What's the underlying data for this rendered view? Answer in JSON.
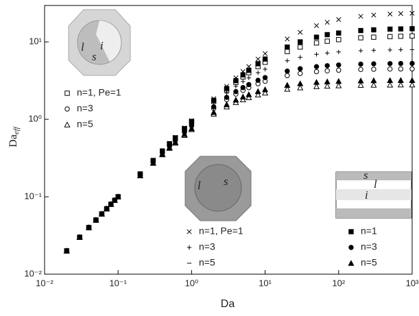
{
  "chart_data": {
    "type": "scatter",
    "x_label": "Da",
    "y_label": "Da",
    "y_label_sub": "eff",
    "log_x": true,
    "log_y": true,
    "xlim": [
      0.01,
      1000
    ],
    "ylim": [
      0.01,
      29.5
    ],
    "xticks": [
      {
        "value": 0.01,
        "label": "10⁻²"
      },
      {
        "value": 0.1,
        "label": "10⁻¹"
      },
      {
        "value": 1,
        "label": "10⁰"
      },
      {
        "value": 10,
        "label": "10¹"
      },
      {
        "value": 100,
        "label": "10²"
      },
      {
        "value": 1000,
        "label": "10³"
      }
    ],
    "yticks": [
      {
        "value": 0.01,
        "label": "10⁻²"
      },
      {
        "value": 0.1,
        "label": "10⁻¹"
      },
      {
        "value": 1,
        "label": "10⁰"
      },
      {
        "value": 10,
        "label": "10¹"
      }
    ],
    "x": [
      0.02,
      0.03,
      0.04,
      0.05,
      0.06,
      0.07,
      0.08,
      0.09,
      0.1,
      0.2,
      0.3,
      0.4,
      0.5,
      0.6,
      0.8,
      1,
      2,
      3,
      4,
      5,
      6,
      8,
      10,
      20,
      30,
      50,
      70,
      100,
      200,
      300,
      500,
      700,
      1000
    ],
    "series": [
      {
        "name": "n=1, Pe=1",
        "marker": "square-open",
        "color": "#000000",
        "values": [
          0.02,
          0.03,
          0.04,
          0.05,
          0.06,
          0.07,
          0.08,
          0.09,
          0.1,
          0.197,
          0.293,
          0.387,
          0.48,
          0.571,
          0.75,
          0.92,
          1.71,
          2.4,
          3,
          3.53,
          4,
          4.8,
          5.45,
          7.5,
          8.57,
          9.68,
          10.2,
          10.7,
          11.3,
          11.5,
          11.7,
          11.8,
          11.9
        ]
      },
      {
        "name": "n=3",
        "marker": "circle-open",
        "color": "#000000",
        "values": [
          0.02,
          0.03,
          0.04,
          0.05,
          0.06,
          0.07,
          0.08,
          0.09,
          0.1,
          0.191,
          0.281,
          0.367,
          0.45,
          0.529,
          0.679,
          0.82,
          1.38,
          1.8,
          2.12,
          2.37,
          2.57,
          2.88,
          3.1,
          3.67,
          3.91,
          4.13,
          4.23,
          4.31,
          4.4,
          4.43,
          4.46,
          4.47,
          4.48
        ]
      },
      {
        "name": "n=5",
        "marker": "triangle-open",
        "color": "#000000",
        "values": [
          0.02,
          0.03,
          0.04,
          0.05,
          0.06,
          0.07,
          0.08,
          0.09,
          0.1,
          0.187,
          0.271,
          0.35,
          0.424,
          0.494,
          0.622,
          0.74,
          1.17,
          1.45,
          1.65,
          1.79,
          1.91,
          2.07,
          2.19,
          2.46,
          2.56,
          2.65,
          2.69,
          2.72,
          2.76,
          2.77,
          2.78,
          2.79,
          2.79
        ]
      },
      {
        "name": "n=1, Pe=1",
        "marker": "x",
        "color": "#000000",
        "values": [
          0.02,
          0.03,
          0.04,
          0.05,
          0.06,
          0.07,
          0.08,
          0.09,
          0.1,
          0.198,
          0.296,
          0.393,
          0.49,
          0.585,
          0.774,
          0.96,
          1.85,
          2.67,
          3.43,
          4.14,
          4.8,
          6,
          7.06,
          10.9,
          13.3,
          16.2,
          17.9,
          19.4,
          21.4,
          22.2,
          22.9,
          23.2,
          23.4
        ]
      },
      {
        "name": "n=3",
        "marker": "plus",
        "color": "#000000",
        "values": [
          0.02,
          0.03,
          0.04,
          0.05,
          0.06,
          0.07,
          0.08,
          0.09,
          0.1,
          0.195,
          0.289,
          0.381,
          0.471,
          0.558,
          0.727,
          0.89,
          1.6,
          2.18,
          2.67,
          3.08,
          3.43,
          4,
          4.44,
          5.71,
          6.32,
          6.9,
          7.18,
          7.41,
          7.69,
          7.79,
          7.87,
          7.91,
          7.94
        ]
      },
      {
        "name": "n=5",
        "marker": "dash",
        "color": "#000000",
        "values": [
          0.02,
          0.03,
          0.04,
          0.05,
          0.06,
          0.07,
          0.08,
          0.09,
          0.1,
          0.188,
          0.273,
          0.353,
          0.429,
          0.5,
          0.632,
          0.75,
          1.2,
          1.5,
          1.71,
          1.88,
          2,
          2.18,
          2.31,
          2.61,
          2.73,
          2.83,
          2.88,
          2.91,
          2.96,
          2.97,
          2.98,
          2.99,
          2.99
        ]
      },
      {
        "name": "n=1",
        "marker": "square",
        "color": "#000000",
        "values": [
          0.02,
          0.03,
          0.04,
          0.05,
          0.06,
          0.07,
          0.08,
          0.09,
          0.1,
          0.197,
          0.294,
          0.39,
          0.484,
          0.577,
          0.759,
          0.94,
          1.76,
          2.5,
          3.16,
          3.75,
          4.29,
          5.22,
          6,
          8.57,
          10,
          11.5,
          12.4,
          13,
          14,
          14.3,
          14.6,
          14.7,
          14.8
        ]
      },
      {
        "name": "n=3",
        "marker": "circle",
        "color": "#000000",
        "values": [
          0.02,
          0.03,
          0.04,
          0.05,
          0.06,
          0.07,
          0.08,
          0.09,
          0.1,
          0.193,
          0.284,
          0.372,
          0.457,
          0.539,
          0.695,
          0.84,
          1.45,
          1.92,
          2.28,
          2.57,
          2.81,
          3.19,
          3.46,
          4.19,
          4.5,
          4.79,
          4.93,
          5.03,
          5.16,
          5.21,
          5.24,
          5.26,
          5.27
        ]
      },
      {
        "name": "n=5",
        "marker": "triangle",
        "color": "#000000",
        "values": [
          0.02,
          0.03,
          0.04,
          0.05,
          0.06,
          0.07,
          0.08,
          0.09,
          0.1,
          0.188,
          0.274,
          0.356,
          0.432,
          0.505,
          0.64,
          0.76,
          1.23,
          1.55,
          1.78,
          1.95,
          2.09,
          2.29,
          2.42,
          2.76,
          2.89,
          3.01,
          3.06,
          3.1,
          3.15,
          3.17,
          3.18,
          3.19,
          3.19
        ]
      }
    ],
    "inset_labels": [
      [
        "l",
        "s",
        "i"
      ],
      [
        "l",
        "s"
      ],
      [
        "s",
        "l",
        "i"
      ]
    ]
  }
}
